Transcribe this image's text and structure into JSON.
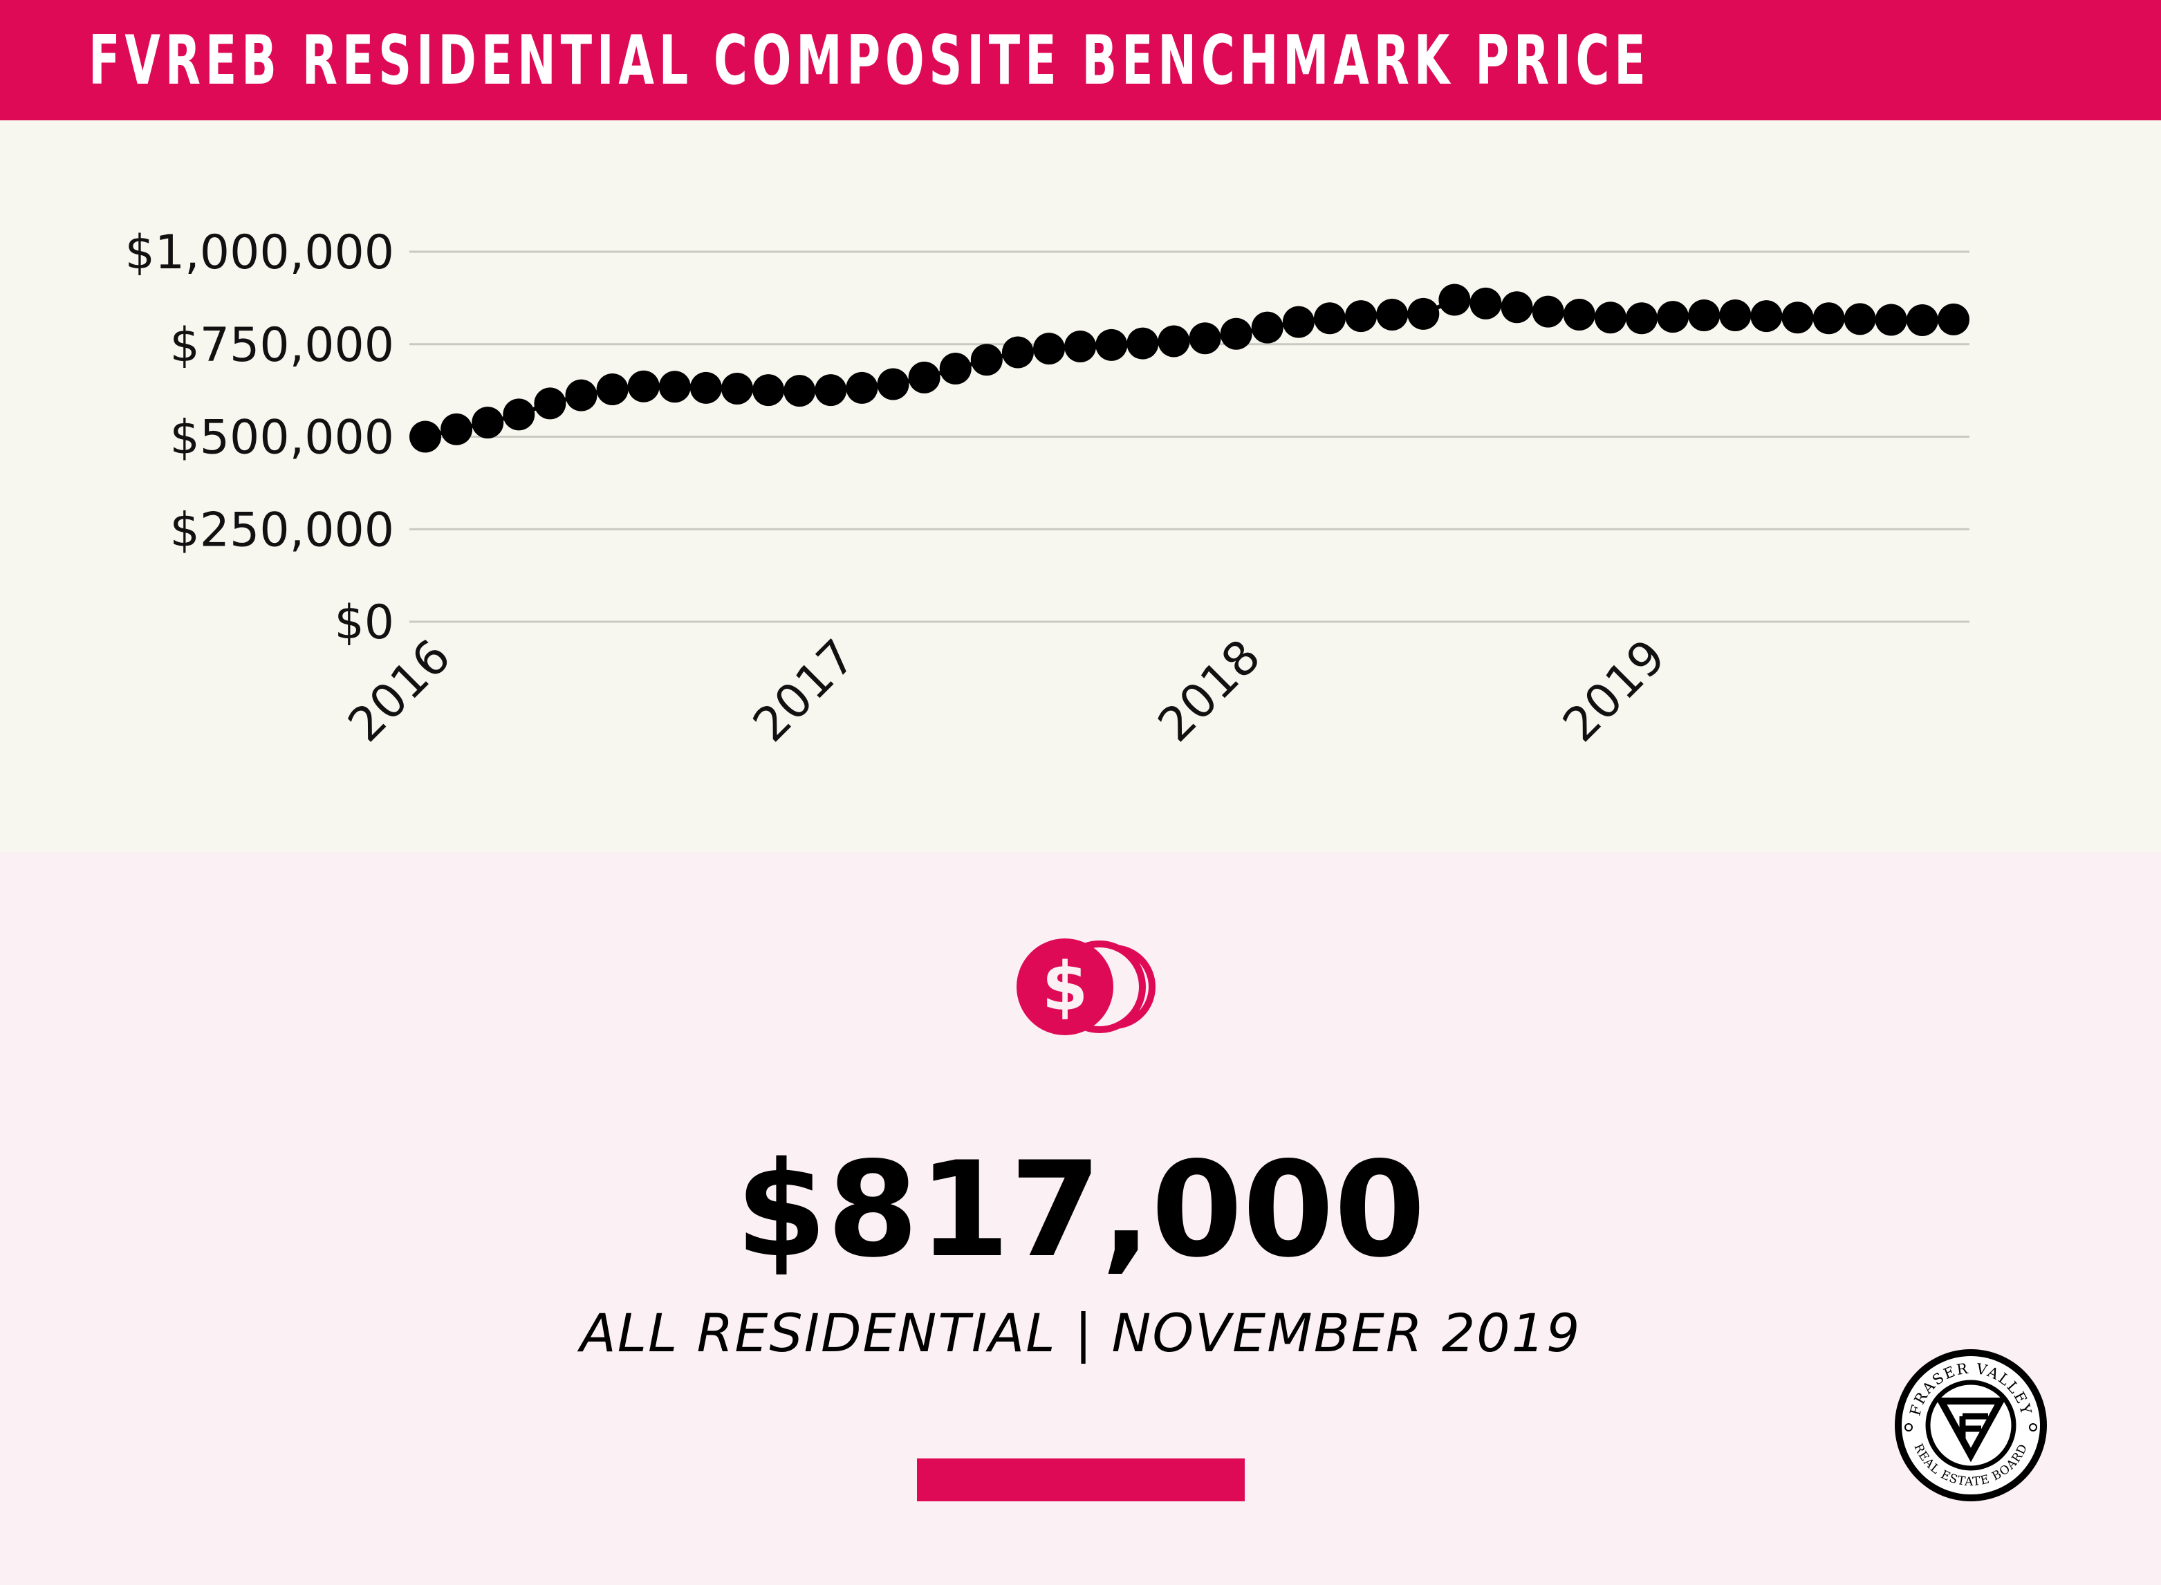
{
  "header": {
    "title": "FVREB RESIDENTIAL COMPOSITE BENCHMARK PRICE"
  },
  "colors": {
    "accent": "#de0a56",
    "chart_bg": "#f8f7ef",
    "page_bg": "#fbf0f3",
    "grid": "#c9c9c4",
    "points": "#000000"
  },
  "chart_data": {
    "type": "line",
    "title": "",
    "xlabel": "",
    "ylabel": "",
    "ylim": [
      0,
      1000000
    ],
    "y_ticks": [
      {
        "value": 1000000,
        "label": "$1,000,000"
      },
      {
        "value": 750000,
        "label": "$750,000"
      },
      {
        "value": 500000,
        "label": "$500,000"
      },
      {
        "value": 250000,
        "label": "$250,000"
      },
      {
        "value": 0,
        "label": "$0"
      }
    ],
    "x_ticks": [
      "2016",
      "2017",
      "2018",
      "2019"
    ],
    "grid": true,
    "marker": "circle",
    "x_start": "2016-01",
    "series": [
      {
        "values": [
          500000,
          520000,
          538000,
          560000,
          590000,
          612000,
          628000,
          636000,
          635000,
          632000,
          630000,
          626000,
          624000,
          626000,
          632000,
          642000,
          660000,
          684000,
          708000,
          728000,
          738000,
          744000,
          748000,
          752000,
          758000,
          766000,
          778000,
          795000,
          810000,
          820000,
          826000,
          830000,
          832000,
          870000,
          860000,
          850000,
          838000,
          830000,
          822000,
          820000,
          824000,
          828000,
          828000,
          826000,
          822000,
          820000,
          818000,
          816000,
          815000,
          817000
        ]
      }
    ]
  },
  "icons": {
    "coins": "dollar-coins-icon",
    "logo": "fraser-valley-logo"
  },
  "logo": {
    "top_text": "FRASER VALLEY",
    "bottom_text": "REAL ESTATE BOARD"
  },
  "summary": {
    "value": "$817,000",
    "subtitle": "ALL RESIDENTIAL | NOVEMBER 2019"
  }
}
